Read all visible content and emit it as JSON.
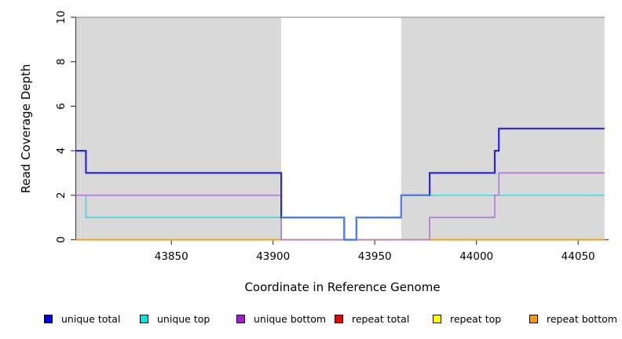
{
  "chart_data": {
    "type": "line",
    "subtype": "step",
    "title": "",
    "xlabel": "Coordinate in Reference Genome",
    "ylabel": "Read Coverage Depth",
    "xlim": [
      43803,
      44065
    ],
    "ylim": [
      0,
      10
    ],
    "x_ticks": [
      43850,
      43900,
      43950,
      44000,
      44050
    ],
    "y_ticks": [
      0,
      2,
      4,
      6,
      8,
      10
    ],
    "x_data_end": 44063,
    "grid": "off",
    "legend_position": "bottom",
    "shaded_regions": [
      {
        "x0": 43803,
        "x1": 43904
      },
      {
        "x0": 43963,
        "x1": 44063
      }
    ],
    "colors": {
      "shade": "#d9d9d9",
      "shade_border": "#9a9a9a",
      "axis": "#444444",
      "blue_cyan_overlap": "#4b82f0"
    },
    "series": [
      {
        "name": "repeat total",
        "color": "#e03c50",
        "legend_color": "#ee0000",
        "steps": [
          [
            43803,
            0
          ]
        ]
      },
      {
        "name": "repeat top",
        "color": "#f5f500",
        "legend_color": "#ffff00",
        "steps": [
          [
            43803,
            0
          ]
        ]
      },
      {
        "name": "repeat bottom",
        "color": "#ff9418",
        "legend_color": "#ff9900",
        "steps": [
          [
            43803,
            0
          ]
        ]
      },
      {
        "name": "unique top",
        "color": "#4ed8de",
        "legend_color": "#00e5e5",
        "steps": [
          [
            43803,
            2
          ],
          [
            43808,
            1
          ],
          [
            43935,
            0
          ],
          [
            43941,
            1
          ],
          [
            43963,
            2
          ]
        ]
      },
      {
        "name": "unique bottom",
        "color": "#b57bdc",
        "legend_color": "#a020d0",
        "steps": [
          [
            43803,
            2
          ],
          [
            43904,
            0
          ],
          [
            43977,
            1
          ],
          [
            44009,
            2
          ],
          [
            44011,
            3
          ]
        ]
      },
      {
        "name": "unique total",
        "color": "#2828dc",
        "legend_color": "#0000ee",
        "steps": [
          [
            43803,
            4
          ],
          [
            43808,
            3
          ],
          [
            43904,
            1
          ],
          [
            43935,
            0
          ],
          [
            43941,
            1
          ],
          [
            43963,
            2
          ],
          [
            43977,
            3
          ],
          [
            44009,
            4
          ],
          [
            44011,
            5
          ]
        ]
      }
    ],
    "legend": [
      {
        "label": "unique total",
        "color": "#0000ee"
      },
      {
        "label": "unique top",
        "color": "#00e5e5"
      },
      {
        "label": "unique bottom",
        "color": "#a020d0"
      },
      {
        "label": "repeat total",
        "color": "#ee0000"
      },
      {
        "label": "repeat top",
        "color": "#ffff00"
      },
      {
        "label": "repeat bottom",
        "color": "#ff9900"
      }
    ]
  }
}
